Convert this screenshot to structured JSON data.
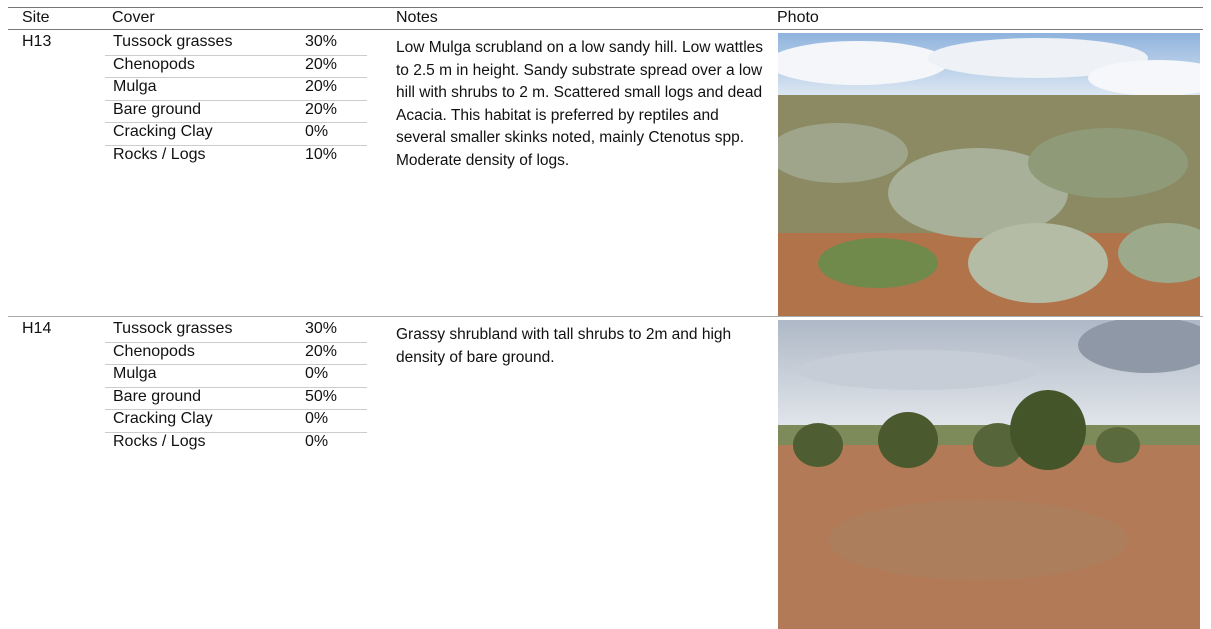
{
  "header": {
    "site": "Site",
    "cover": "Cover",
    "notes": "Notes",
    "photo": "Photo"
  },
  "rows": [
    {
      "site": "H13",
      "cover": [
        [
          "Tussock grasses",
          "30%"
        ],
        [
          "Chenopods",
          "20%"
        ],
        [
          "Mulga",
          "20%"
        ],
        [
          "Bare ground",
          "20%"
        ],
        [
          "Cracking Clay",
          "0%"
        ],
        [
          "Rocks / Logs",
          "10%"
        ]
      ],
      "notes": "Low Mulga scrubland on a low sandy hill. Low wattles to 2.5 m in height. Sandy substrate spread over a low hill with shrubs to 2 m. Scattered small logs and dead Acacia. This habitat is preferred by reptiles and several smaller skinks noted, mainly Ctenotus spp. Moderate density of logs."
    },
    {
      "site": "H14",
      "cover": [
        [
          "Tussock grasses",
          "30%"
        ],
        [
          "Chenopods",
          "20%"
        ],
        [
          "Mulga",
          "0%"
        ],
        [
          "Bare ground",
          "50%"
        ],
        [
          "Cracking Clay",
          "0%"
        ],
        [
          "Rocks / Logs",
          "0%"
        ]
      ],
      "notes": "Grassy shrubland with tall shrubs to 2m and high density of bare ground."
    }
  ]
}
